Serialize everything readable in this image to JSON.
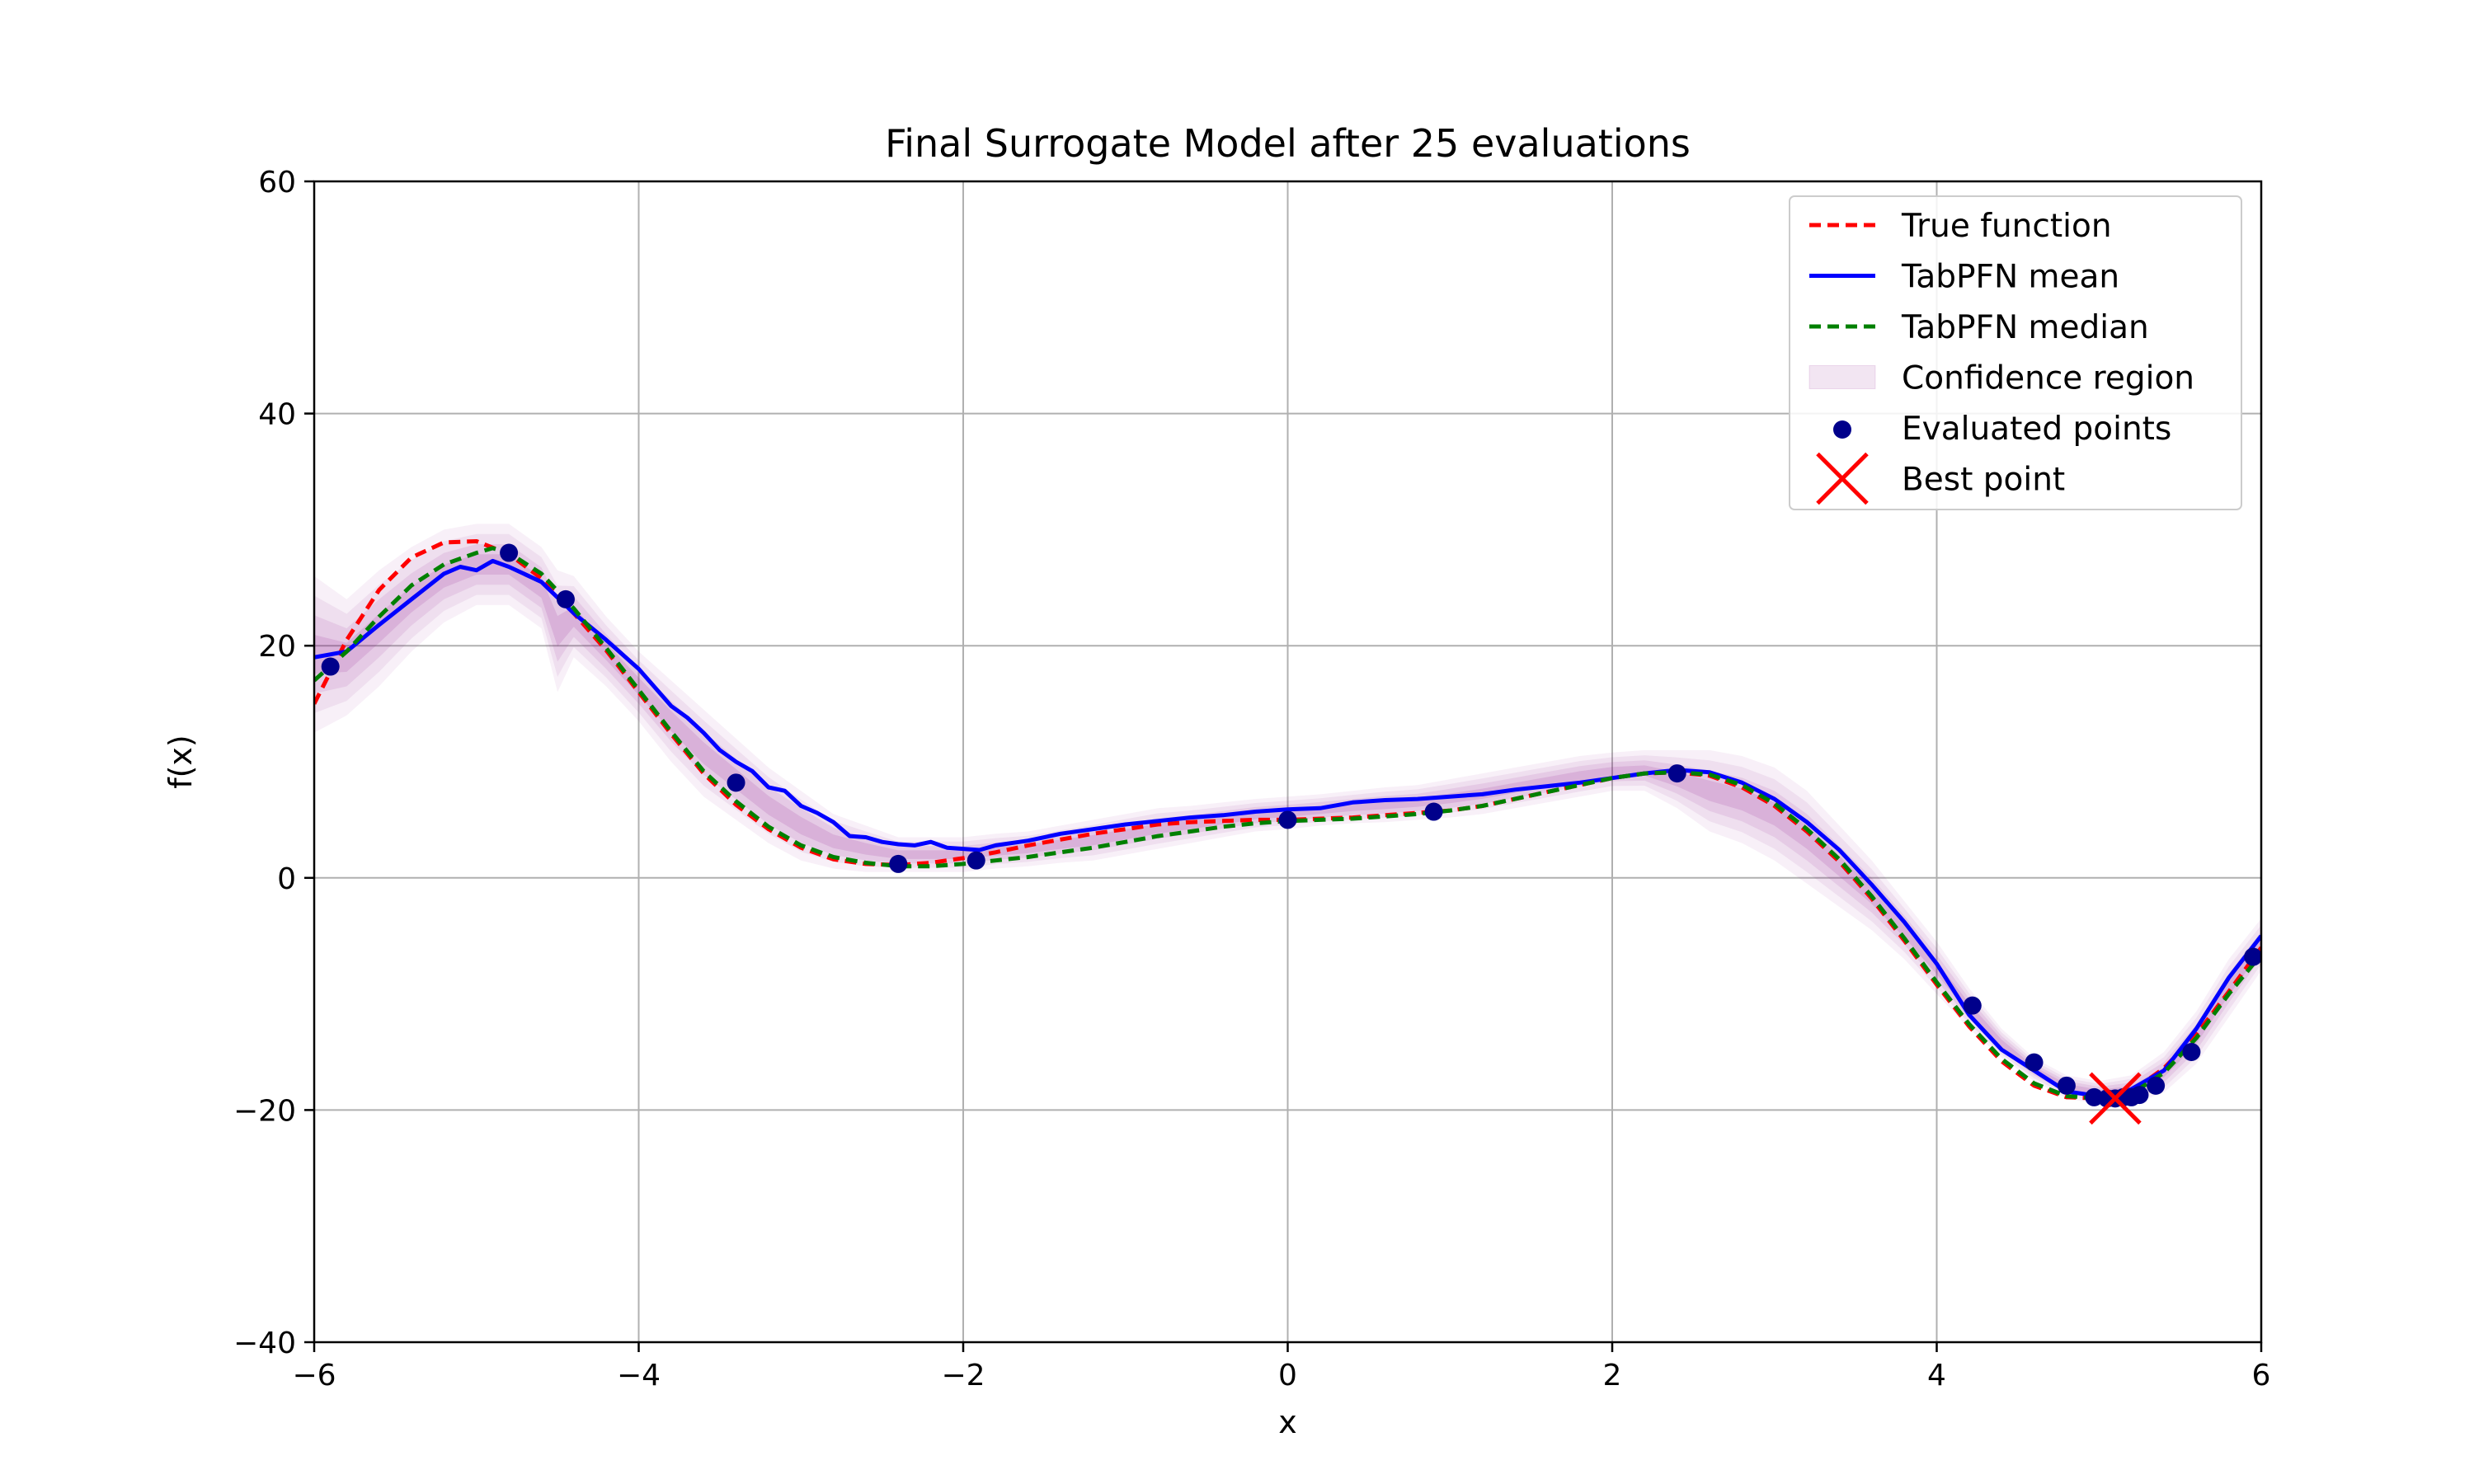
{
  "chart_data": {
    "type": "line",
    "title": "Final Surrogate Model after 25 evaluations",
    "xlabel": "x",
    "ylabel": "f(x)",
    "xlim": [
      -6,
      6
    ],
    "ylim": [
      -40,
      60
    ],
    "xticks": [
      -6,
      -4,
      -2,
      0,
      2,
      4,
      6
    ],
    "yticks": [
      -40,
      -20,
      0,
      20,
      40,
      60
    ],
    "xtick_labels": [
      "−6",
      "−4",
      "−2",
      "0",
      "2",
      "4",
      "6"
    ],
    "ytick_labels": [
      "−40",
      "−20",
      "0",
      "20",
      "40",
      "60"
    ],
    "grid": true,
    "legend_position": "top-right",
    "colors": {
      "true_function": "#ff0000",
      "mean": "#0000ff",
      "median": "#008000",
      "confidence": "#800080",
      "points": "#00008b",
      "best": "#ff0000"
    },
    "legend": [
      {
        "key": "true",
        "label": "True function"
      },
      {
        "key": "mean",
        "label": "TabPFN mean"
      },
      {
        "key": "median",
        "label": "TabPFN median"
      },
      {
        "key": "conf",
        "label": "Confidence region"
      },
      {
        "key": "points",
        "label": "Evaluated points"
      },
      {
        "key": "best",
        "label": "Best point"
      }
    ],
    "series": [
      {
        "name": "True function",
        "x": [
          -6,
          -5.8,
          -5.6,
          -5.4,
          -5.2,
          -5.0,
          -4.8,
          -4.6,
          -4.4,
          -4.2,
          -4.0,
          -3.8,
          -3.6,
          -3.4,
          -3.2,
          -3.0,
          -2.8,
          -2.6,
          -2.4,
          -2.2,
          -2.0,
          -1.8,
          -1.6,
          -1.4,
          -1.2,
          -1.0,
          -0.8,
          -0.6,
          -0.4,
          -0.2,
          0,
          0.2,
          0.4,
          0.6,
          0.8,
          1.0,
          1.2,
          1.4,
          1.6,
          1.8,
          2.0,
          2.2,
          2.4,
          2.6,
          2.8,
          3.0,
          3.2,
          3.4,
          3.6,
          3.8,
          4.0,
          4.2,
          4.4,
          4.6,
          4.8,
          5.0,
          5.1,
          5.2,
          5.4,
          5.6,
          5.8,
          6.0
        ],
        "y": [
          15.0,
          20.5,
          24.8,
          27.6,
          28.9,
          29.0,
          27.9,
          25.8,
          22.8,
          19.6,
          16.0,
          12.4,
          9.0,
          6.3,
          4.2,
          2.6,
          1.6,
          1.2,
          1.1,
          1.3,
          1.7,
          2.2,
          2.8,
          3.3,
          3.8,
          4.2,
          4.6,
          4.8,
          4.9,
          5.0,
          5.0,
          5.1,
          5.2,
          5.4,
          5.6,
          5.8,
          6.2,
          6.8,
          7.4,
          8.0,
          8.6,
          9.0,
          9.1,
          8.8,
          7.8,
          6.2,
          4.0,
          1.4,
          -1.8,
          -5.4,
          -9.2,
          -12.8,
          -15.8,
          -17.9,
          -18.9,
          -19.0,
          -18.8,
          -18.4,
          -16.4,
          -13.5,
          -9.8,
          -6.0
        ]
      },
      {
        "name": "TabPFN mean",
        "x": [
          -6,
          -5.8,
          -5.6,
          -5.4,
          -5.2,
          -5.1,
          -5.0,
          -4.9,
          -4.8,
          -4.6,
          -4.4,
          -4.2,
          -4.0,
          -3.8,
          -3.7,
          -3.6,
          -3.5,
          -3.4,
          -3.3,
          -3.2,
          -3.1,
          -3.0,
          -2.9,
          -2.8,
          -2.7,
          -2.6,
          -2.5,
          -2.4,
          -2.3,
          -2.2,
          -2.1,
          -2.0,
          -1.9,
          -1.8,
          -1.6,
          -1.4,
          -1.2,
          -1.0,
          -0.8,
          -0.6,
          -0.4,
          -0.2,
          0,
          0.2,
          0.4,
          0.6,
          0.8,
          1.0,
          1.2,
          1.4,
          1.6,
          1.8,
          2.0,
          2.2,
          2.4,
          2.6,
          2.8,
          3.0,
          3.2,
          3.4,
          3.6,
          3.8,
          4.0,
          4.2,
          4.4,
          4.6,
          4.8,
          5.0,
          5.1,
          5.2,
          5.4,
          5.6,
          5.8,
          6.0
        ],
        "y": [
          19.0,
          19.5,
          21.8,
          24.0,
          26.2,
          26.8,
          26.5,
          27.3,
          26.8,
          25.5,
          22.8,
          20.5,
          18.0,
          14.8,
          13.8,
          12.5,
          11.0,
          10.0,
          9.2,
          7.8,
          7.5,
          6.2,
          5.6,
          4.8,
          3.6,
          3.5,
          3.1,
          2.9,
          2.8,
          3.1,
          2.6,
          2.5,
          2.4,
          2.8,
          3.2,
          3.8,
          4.2,
          4.6,
          4.9,
          5.2,
          5.4,
          5.7,
          5.9,
          6.0,
          6.5,
          6.7,
          6.8,
          7.0,
          7.2,
          7.6,
          7.9,
          8.2,
          8.6,
          9.0,
          9.3,
          9.1,
          8.2,
          6.8,
          4.8,
          2.4,
          -0.6,
          -3.8,
          -7.4,
          -11.8,
          -14.8,
          -16.6,
          -18.4,
          -18.8,
          -18.7,
          -18.2,
          -16.6,
          -13.0,
          -8.6,
          -5.0
        ]
      },
      {
        "name": "TabPFN median",
        "x": [
          -6,
          -5.8,
          -5.6,
          -5.4,
          -5.2,
          -5.0,
          -4.9,
          -4.8,
          -4.6,
          -4.4,
          -4.2,
          -4.0,
          -3.8,
          -3.6,
          -3.4,
          -3.2,
          -3.0,
          -2.8,
          -2.6,
          -2.4,
          -2.2,
          -2.0,
          -1.8,
          -1.6,
          -1.4,
          -1.2,
          -1.0,
          -0.8,
          -0.6,
          -0.4,
          -0.2,
          0,
          0.2,
          0.4,
          0.6,
          0.8,
          1.0,
          1.2,
          1.4,
          1.6,
          1.8,
          2.0,
          2.2,
          2.4,
          2.6,
          2.8,
          3.0,
          3.2,
          3.4,
          3.6,
          3.8,
          4.0,
          4.2,
          4.4,
          4.6,
          4.8,
          5.0,
          5.1,
          5.2,
          5.4,
          5.6,
          5.8,
          6.0
        ],
        "y": [
          17.0,
          19.5,
          22.5,
          25.2,
          27.0,
          28.0,
          28.4,
          28.0,
          26.2,
          23.2,
          19.8,
          16.2,
          12.6,
          9.2,
          6.6,
          4.4,
          2.8,
          1.8,
          1.3,
          1.0,
          1.0,
          1.2,
          1.5,
          1.8,
          2.2,
          2.6,
          3.1,
          3.6,
          4.0,
          4.4,
          4.7,
          4.9,
          5.0,
          5.1,
          5.3,
          5.5,
          5.8,
          6.2,
          6.8,
          7.4,
          8.0,
          8.6,
          9.0,
          9.1,
          8.9,
          8.0,
          6.4,
          4.2,
          1.6,
          -1.6,
          -5.2,
          -9.0,
          -12.6,
          -15.6,
          -17.7,
          -18.8,
          -19.0,
          -18.9,
          -18.6,
          -16.8,
          -13.8,
          -10.0,
          -6.6
        ]
      }
    ],
    "confidence_region": {
      "x": [
        -6,
        -5.8,
        -5.6,
        -5.4,
        -5.2,
        -5.0,
        -4.8,
        -4.6,
        -4.5,
        -4.4,
        -4.2,
        -4.0,
        -3.8,
        -3.6,
        -3.4,
        -3.2,
        -3.0,
        -2.8,
        -2.6,
        -2.4,
        -2.2,
        -2.0,
        -1.8,
        -1.6,
        -1.4,
        -1.2,
        -1.0,
        -0.8,
        -0.6,
        -0.4,
        -0.2,
        0,
        0.2,
        0.4,
        0.6,
        0.8,
        1.0,
        1.2,
        1.4,
        1.6,
        1.8,
        2.0,
        2.2,
        2.4,
        2.6,
        2.8,
        3.0,
        3.2,
        3.4,
        3.6,
        3.8,
        4.0,
        4.2,
        4.4,
        4.6,
        4.8,
        5.0,
        5.2,
        5.4,
        5.6,
        5.8,
        6.0
      ],
      "upper": [
        26.0,
        24.0,
        26.5,
        28.5,
        30.0,
        30.5,
        30.5,
        28.5,
        26.5,
        26.0,
        22.5,
        19.5,
        17.0,
        14.5,
        12.0,
        9.5,
        7.5,
        5.5,
        4.5,
        3.5,
        3.5,
        3.5,
        3.8,
        4.0,
        4.5,
        5.0,
        5.5,
        6.0,
        6.2,
        6.5,
        6.8,
        7.0,
        7.2,
        7.5,
        7.8,
        8.0,
        8.5,
        9.0,
        9.5,
        10.0,
        10.5,
        10.8,
        11.0,
        11.0,
        11.0,
        10.5,
        9.5,
        7.5,
        4.5,
        1.5,
        -2.0,
        -5.5,
        -9.5,
        -13.0,
        -15.5,
        -17.0,
        -17.5,
        -17.0,
        -15.0,
        -11.5,
        -7.0,
        -3.5
      ],
      "lower": [
        12.5,
        14.0,
        16.5,
        19.5,
        22.0,
        23.5,
        23.5,
        21.5,
        16.0,
        19.0,
        16.5,
        13.5,
        10.0,
        7.0,
        5.0,
        3.0,
        1.5,
        0.8,
        0.5,
        0.5,
        0.5,
        0.5,
        0.8,
        1.0,
        1.3,
        1.5,
        2.0,
        2.5,
        3.0,
        3.5,
        4.0,
        4.2,
        4.5,
        4.7,
        4.8,
        5.0,
        5.2,
        5.5,
        6.0,
        6.5,
        7.0,
        7.5,
        7.5,
        6.0,
        4.0,
        3.0,
        1.5,
        -0.5,
        -2.5,
        -4.5,
        -7.0,
        -10.0,
        -13.0,
        -15.5,
        -17.5,
        -19.0,
        -19.5,
        -19.5,
        -18.5,
        -16.0,
        -12.0,
        -8.0
      ]
    },
    "evaluated_points": {
      "x": [
        -5.9,
        -4.8,
        -4.45,
        -3.4,
        -2.4,
        -1.92,
        0.0,
        0.9,
        2.4,
        4.22,
        4.6,
        4.8,
        4.97,
        5.05,
        5.1,
        5.15,
        5.2,
        5.25,
        5.35,
        5.57,
        5.95
      ],
      "y": [
        18.2,
        28.0,
        24.0,
        8.2,
        1.2,
        1.5,
        5.0,
        5.7,
        9.0,
        -11.0,
        -15.9,
        -17.9,
        -18.9,
        -19.0,
        -19.0,
        -18.9,
        -18.9,
        -18.7,
        -17.9,
        -15.0,
        -6.8
      ]
    },
    "best_point": {
      "x": 5.1,
      "y": -19.0
    }
  }
}
